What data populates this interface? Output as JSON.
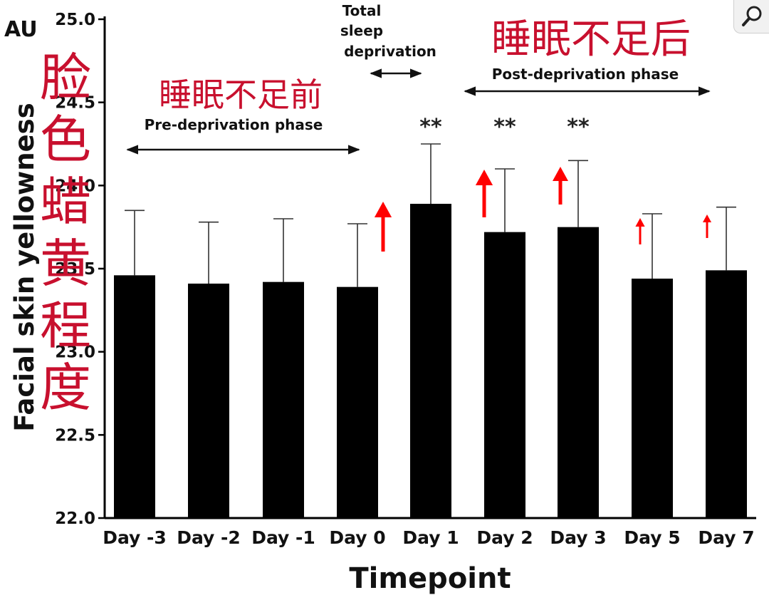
{
  "chart_data": {
    "type": "bar",
    "unit": "AU",
    "ylabel": "Facial skin yellowness",
    "xlabel": "Timepoint",
    "ylim": [
      22.0,
      25.0
    ],
    "yticks": [
      "22.0",
      "22.5",
      "23.0",
      "23.5",
      "24.0",
      "24.5",
      "25.0"
    ],
    "categories": [
      "Day -3",
      "Day -2",
      "Day -1",
      "Day 0",
      "Day 1",
      "Day 2",
      "Day 3",
      "Day 5",
      "Day 7"
    ],
    "values": [
      23.46,
      23.41,
      23.42,
      23.39,
      23.89,
      23.72,
      23.75,
      23.44,
      23.49
    ],
    "error_upper": [
      0.39,
      0.37,
      0.38,
      0.38,
      0.36,
      0.38,
      0.4,
      0.39,
      0.38
    ],
    "significance": [
      "",
      "",
      "",
      "",
      "**",
      "**",
      "**",
      "",
      ""
    ],
    "increase_arrows": [
      0,
      0,
      0,
      1,
      0,
      1,
      1,
      0.5,
      0.45
    ],
    "phases": {
      "pre": "Pre-deprivation phase",
      "total_line1": "Total",
      "total_line2": "sleep",
      "total_line3": "deprivation",
      "post": "Post-deprivation phase"
    },
    "cn_labels": {
      "ylabel_cn": "脸色蜡黄程度",
      "before": "睡眠不足前",
      "after": "睡眠不足后"
    },
    "bar_color": "#000000",
    "annotation_color": "#c8102e",
    "arrow_color": "#ff0000"
  },
  "zoom": {
    "icon": "magnifier-icon"
  }
}
